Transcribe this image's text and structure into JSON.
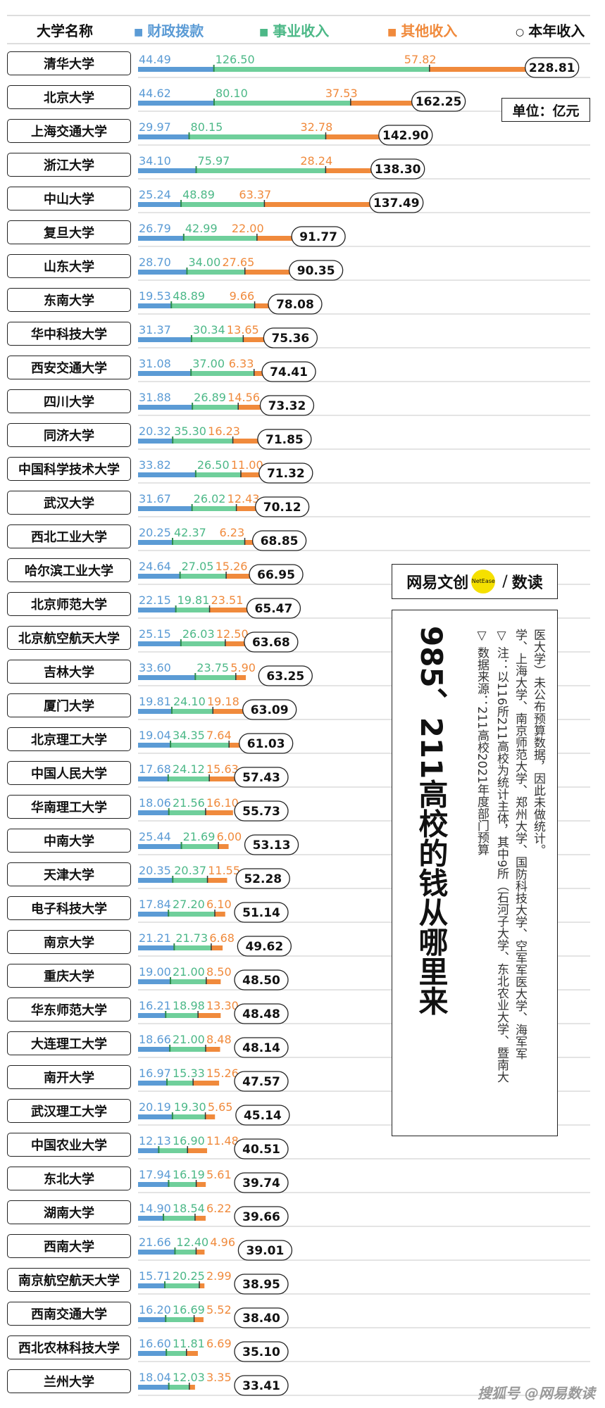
{
  "header": {
    "name_col": "大学名称",
    "fiscal_label": "财政拨款",
    "business_label": "事业收入",
    "other_label": "其他收入",
    "total_label": "本年收入"
  },
  "unit": "单位：亿元",
  "logo": {
    "left": "网易文创",
    "badge": "NetEase",
    "slash": "/",
    "right": "数读"
  },
  "title": "985、211高校的钱从哪里来",
  "notes": {
    "source": "▽ 数据来源：211高校2021年度部门预算",
    "note_line1": "▽ 注：以116所211高校为统计主体，其中9所（石河子大学、东北农业大学、暨南大",
    "note_line2": "学、上海大学、南京师范大学、郑州大学、国防科技大学、空军军医大学、海军军",
    "note_line3": "医大学）未公布预算数据，因此未做统计。"
  },
  "watermark": "搜狐号 @网易数读",
  "colors": {
    "fiscal": "#5b9bd5",
    "business": "#6fcf9b",
    "other": "#f08a3c",
    "divider": "#2d8a4e"
  },
  "chart_data": {
    "type": "bar",
    "stacked": true,
    "orientation": "horizontal",
    "series_names": [
      "财政拨款",
      "事业收入",
      "其他收入"
    ],
    "total_name": "本年收入",
    "categories": [
      "清华大学",
      "北京大学",
      "上海交通大学",
      "浙江大学",
      "中山大学",
      "复旦大学",
      "山东大学",
      "东南大学",
      "华中科技大学",
      "西安交通大学",
      "四川大学",
      "同济大学",
      "中国科学技术大学",
      "武汉大学",
      "西北工业大学",
      "哈尔滨工业大学",
      "北京师范大学",
      "北京航空航天大学",
      "吉林大学",
      "厦门大学",
      "北京理工大学",
      "中国人民大学",
      "华南理工大学",
      "中南大学",
      "天津大学",
      "电子科技大学",
      "南京大学",
      "重庆大学",
      "华东师范大学",
      "大连理工大学",
      "南开大学",
      "武汉理工大学",
      "中国农业大学",
      "东北大学",
      "湖南大学",
      "西南大学",
      "南京航空航天大学",
      "西南交通大学",
      "西北农林科技大学",
      "兰州大学"
    ],
    "fiscal": [
      "44.49",
      "44.62",
      "29.97",
      "34.10",
      "25.24",
      "26.79",
      "28.70",
      "19.53",
      "31.37",
      "31.08",
      "31.88",
      "20.32",
      "33.82",
      "31.67",
      "20.25",
      "24.64",
      "22.15",
      "25.15",
      "33.60",
      "19.81",
      "19.04",
      "17.68",
      "18.06",
      "25.44",
      "20.35",
      "17.84",
      "21.21",
      "19.00",
      "16.21",
      "18.66",
      "16.97",
      "20.19",
      "12.13",
      "17.94",
      "14.90",
      "21.66",
      "15.71",
      "16.20",
      "16.60",
      "18.04"
    ],
    "business": [
      "126.50",
      "80.10",
      "80.15",
      "75.97",
      "48.89",
      "42.99",
      "34.00",
      "48.89",
      "30.34",
      "37.00",
      "26.89",
      "35.30",
      "26.50",
      "26.02",
      "42.37",
      "27.05",
      "19.81",
      "26.03",
      "23.75",
      "24.10",
      "34.35",
      "24.12",
      "21.56",
      "21.69",
      "20.37",
      "27.20",
      "21.73",
      "21.00",
      "18.98",
      "21.00",
      "15.33",
      "19.30",
      "16.90",
      "16.19",
      "18.54",
      "12.40",
      "20.25",
      "16.69",
      "11.81",
      "12.03"
    ],
    "other": [
      "57.82",
      "37.53",
      "32.78",
      "28.24",
      "63.37",
      "22.00",
      "27.65",
      "9.66",
      "13.65",
      "6.33",
      "14.56",
      "16.23",
      "11.00",
      "12.43",
      "6.23",
      "15.26",
      "23.51",
      "12.50",
      "5.90",
      "19.18",
      "7.64",
      "15.63",
      "16.10",
      "6.00",
      "11.55",
      "6.10",
      "6.68",
      "8.50",
      "13.30",
      "8.48",
      "15.26",
      "5.65",
      "11.48",
      "5.61",
      "6.22",
      "4.96",
      "2.99",
      "5.52",
      "6.69",
      "3.35"
    ],
    "total": [
      "228.81",
      "162.25",
      "142.90",
      "138.30",
      "137.49",
      "91.77",
      "90.35",
      "78.08",
      "75.36",
      "74.41",
      "73.32",
      "71.85",
      "71.32",
      "70.12",
      "68.85",
      "66.95",
      "65.47",
      "63.68",
      "63.25",
      "63.09",
      "61.03",
      "57.43",
      "55.73",
      "53.13",
      "52.28",
      "51.14",
      "49.62",
      "48.50",
      "48.48",
      "48.14",
      "47.57",
      "45.14",
      "40.51",
      "39.74",
      "39.66",
      "39.01",
      "38.95",
      "38.40",
      "35.10",
      "33.41"
    ],
    "xlim": [
      0,
      230
    ]
  }
}
